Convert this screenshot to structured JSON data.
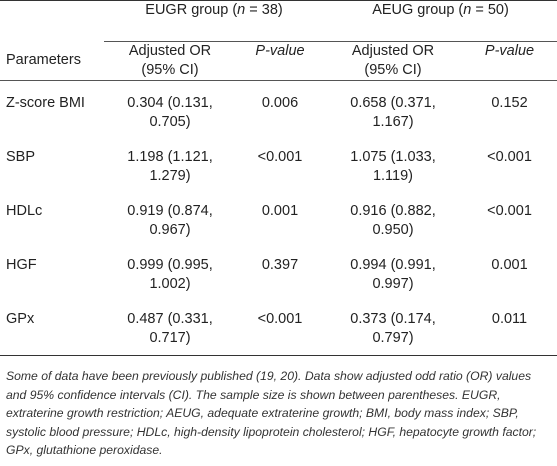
{
  "table": {
    "groups": [
      {
        "label_prefix": "EUGR group (",
        "label_n": "n",
        "label_suffix": " = 38)"
      },
      {
        "label_prefix": "AEUG group (",
        "label_n": "n",
        "label_suffix": " = 50)"
      }
    ],
    "param_header": "Parameters",
    "or_header_line1": "Adjusted OR",
    "or_header_line2": "(95% CI)",
    "p_header": "P-value",
    "rows": [
      {
        "param": "Z-score BMI",
        "eugr_or_1": "0.304 (0.131,",
        "eugr_or_2": "0.705)",
        "eugr_p": "0.006",
        "aeug_or_1": "0.658 (0.371,",
        "aeug_or_2": "1.167)",
        "aeug_p": "0.152"
      },
      {
        "param": "SBP",
        "eugr_or_1": "1.198 (1.121,",
        "eugr_or_2": "1.279)",
        "eugr_p": "<0.001",
        "aeug_or_1": "1.075 (1.033,",
        "aeug_or_2": "1.119)",
        "aeug_p": "<0.001"
      },
      {
        "param": "HDLc",
        "eugr_or_1": "0.919 (0.874,",
        "eugr_or_2": "0.967)",
        "eugr_p": "0.001",
        "aeug_or_1": "0.916 (0.882,",
        "aeug_or_2": "0.950)",
        "aeug_p": "<0.001"
      },
      {
        "param": "HGF",
        "eugr_or_1": "0.999 (0.995,",
        "eugr_or_2": "1.002)",
        "eugr_p": "0.397",
        "aeug_or_1": "0.994 (0.991,",
        "aeug_or_2": "0.997)",
        "aeug_p": "0.001"
      },
      {
        "param": "GPx",
        "eugr_or_1": "0.487 (0.331,",
        "eugr_or_2": "0.717)",
        "eugr_p": "<0.001",
        "aeug_or_1": "0.373 (0.174,",
        "aeug_or_2": "0.797)",
        "aeug_p": "0.011"
      }
    ]
  },
  "footnote": {
    "part1": "Some of data have been previously published (",
    "ref1": "19",
    "sep": ", ",
    "ref2": "20",
    "part2": "). Data show adjusted odd ratio (OR) values and 95% confidence intervals (CI). The sample size is shown between parentheses. EUGR, extraterine growth restriction; AEUG, adequate extraterine growth; BMI, body mass index; SBP, systolic blood pressure; HDLc, high-density lipoprotein cholesterol; HGF, hepatocyte growth factor; GPx, glutathione peroxidase."
  }
}
